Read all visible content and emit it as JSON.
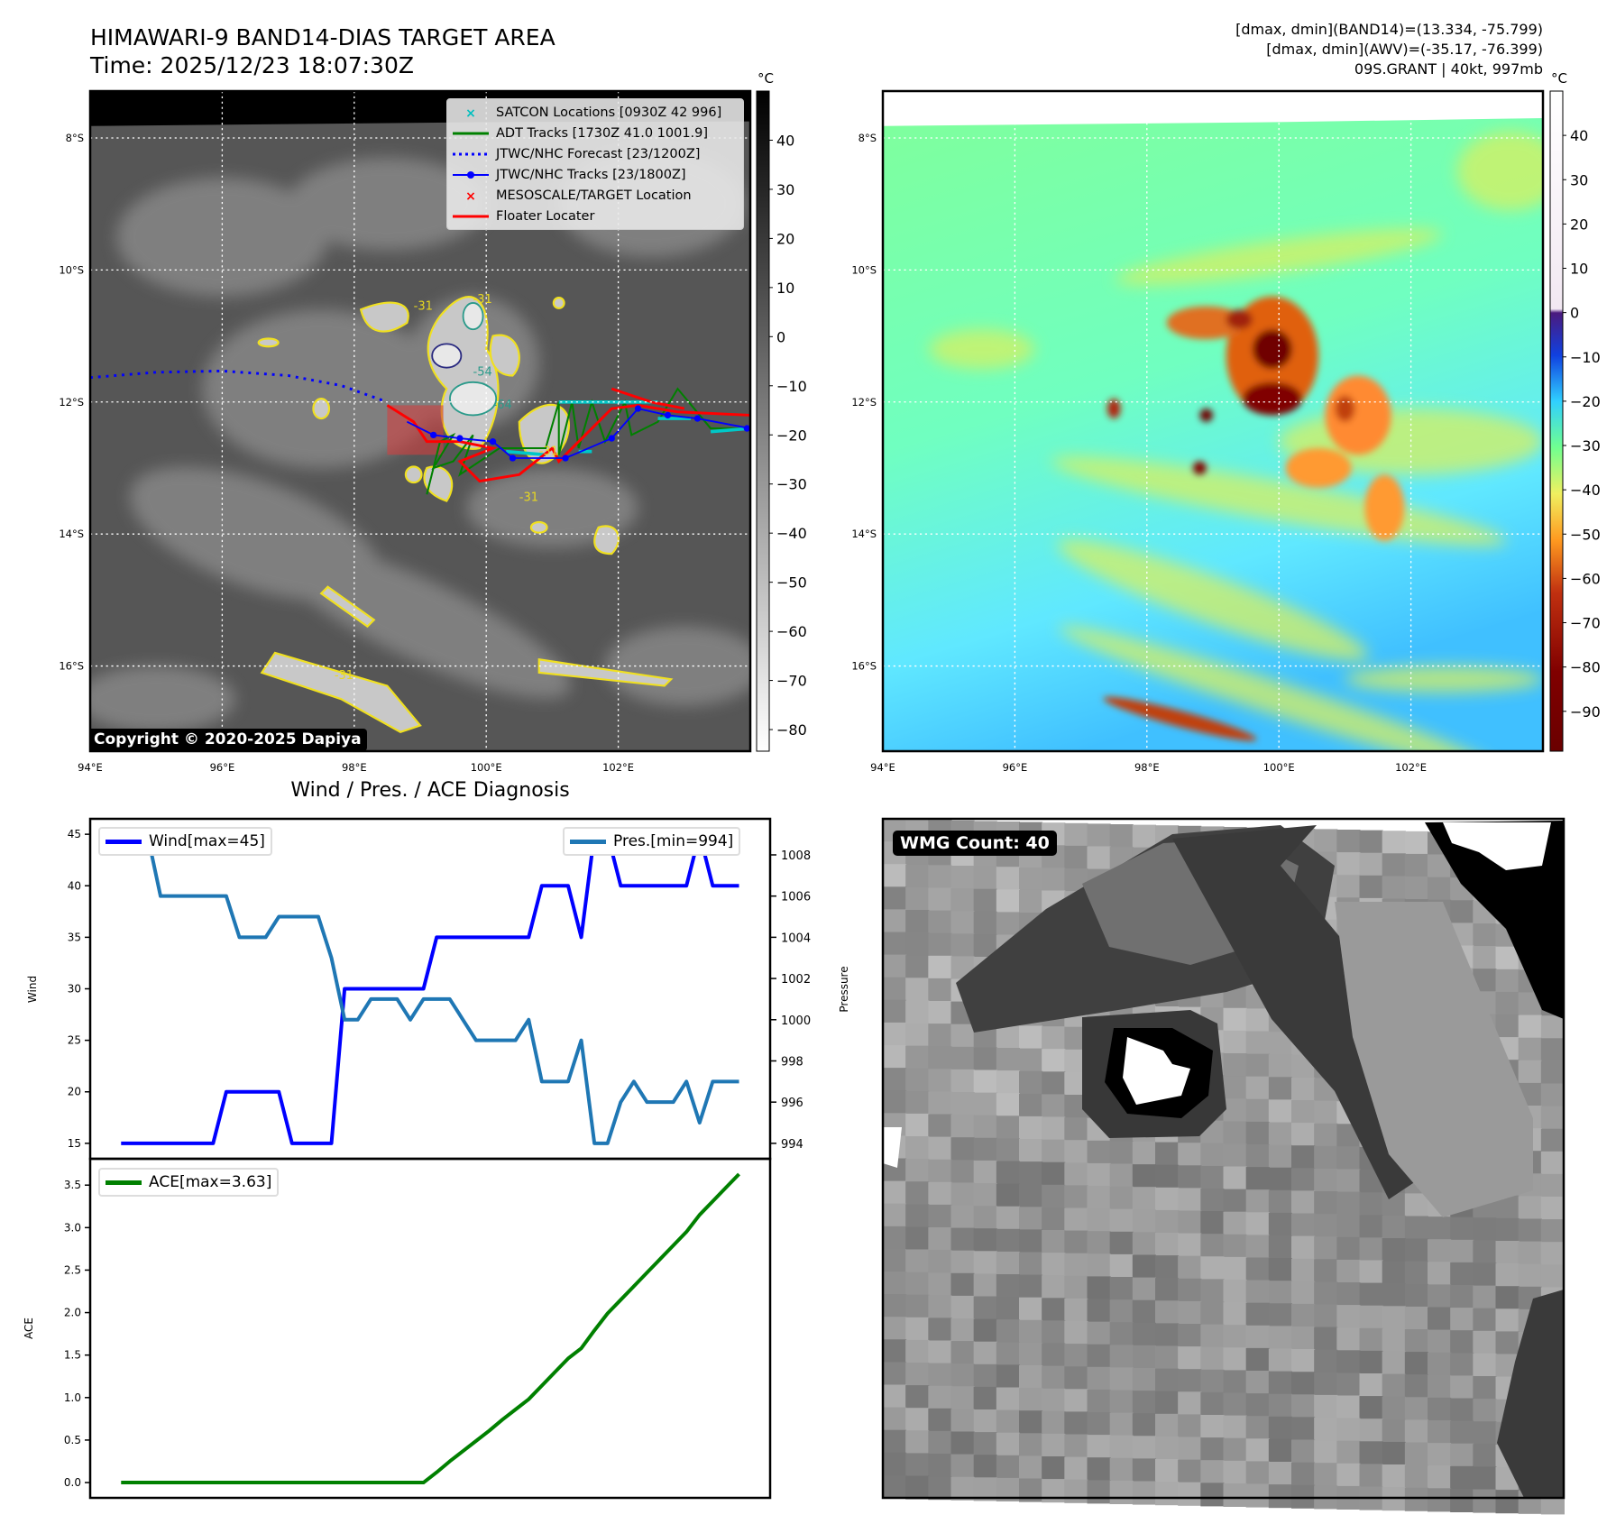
{
  "header": {
    "title": "HIMAWARI-9 BAND14-DIAS TARGET AREA",
    "time": "Time: 2025/12/23 18:07:30Z",
    "stats": [
      "[dmax, dmin](BAND14)=(13.334, -75.799)",
      "[dmax, dmin](AWV)=(-35.17, -76.399)",
      "09S.GRANT | 40kt, 997mb"
    ]
  },
  "legend": [
    {
      "label": "SATCON Locations [0930Z 42 996]",
      "icon": "x-marker-icon",
      "color": "#00bfbf"
    },
    {
      "label": "ADT Tracks [1730Z 41.0 1001.9]",
      "icon": "line-icon",
      "color": "#008000"
    },
    {
      "label": "JTWC/NHC Forecast [23/1200Z]",
      "icon": "dotted-line-icon",
      "color": "#0000ff"
    },
    {
      "label": "JTWC/NHC Tracks [23/1800Z]",
      "icon": "line-dot-icon",
      "color": "#0000ff"
    },
    {
      "label": "MESOSCALE/TARGET Location",
      "icon": "x-marker-icon",
      "color": "#ff0000"
    },
    {
      "label": "Floater Locater",
      "icon": "line-icon",
      "color": "#ff0000"
    }
  ],
  "copyright": "Copyright © 2020-2025 Dapiya",
  "maps": {
    "lat_ticks": [
      "8°S",
      "10°S",
      "12°S",
      "14°S",
      "16°S"
    ],
    "lon_ticks": [
      "94°E",
      "96°E",
      "98°E",
      "100°E",
      "102°E"
    ],
    "colorbar_unit": "°C",
    "left_colorbar_ticks": [
      "40",
      "30",
      "20",
      "10",
      "0",
      "−10",
      "−20",
      "−30",
      "−40",
      "−50",
      "−60",
      "−70",
      "−80"
    ],
    "right_colorbar_ticks": [
      "40",
      "30",
      "20",
      "10",
      "0",
      "−10",
      "−20",
      "−30",
      "−40",
      "−50",
      "−60",
      "−70",
      "−80",
      "−90"
    ],
    "contour_labels": [
      "-31",
      "-31",
      "-54",
      "-64",
      "-31",
      "-31",
      "-31"
    ]
  },
  "wmg_label": "WMG Count: 40",
  "chart_data": [
    {
      "type": "line",
      "title": "Wind / Pres. / ACE Diagnosis",
      "ylabel": "Wind",
      "y2label": "Pressure",
      "ylim": [
        13.5,
        46.5
      ],
      "y2lim": [
        993.25,
        1009.75
      ],
      "yticks": [
        15,
        20,
        25,
        30,
        35,
        40,
        45
      ],
      "y2ticks": [
        994,
        996,
        998,
        1000,
        1002,
        1004,
        1006,
        1008
      ],
      "series": [
        {
          "name": "Wind[max=45]",
          "axis": "left",
          "color": "#0000ff",
          "values": [
            15,
            15,
            15,
            15,
            15,
            15,
            15,
            15,
            20,
            20,
            20,
            20,
            20,
            15,
            15,
            15,
            15,
            30,
            30,
            30,
            30,
            30,
            30,
            30,
            35,
            35,
            35,
            35,
            35,
            35,
            35,
            35,
            40,
            40,
            40,
            35,
            45,
            45,
            40,
            40,
            40,
            40,
            40,
            40,
            45,
            40,
            40,
            40
          ]
        },
        {
          "name": "Pres.[min=994]",
          "axis": "right",
          "color": "#1f77b4",
          "values": [
            1009,
            1009,
            1009,
            1006,
            1006,
            1006,
            1006,
            1006,
            1006,
            1004,
            1004,
            1004,
            1005,
            1005,
            1005,
            1005,
            1003,
            1000,
            1000,
            1001,
            1001,
            1001,
            1000,
            1001,
            1001,
            1001,
            1000,
            999,
            999,
            999,
            999,
            1000,
            997,
            997,
            997,
            999,
            994,
            994,
            996,
            997,
            996,
            996,
            996,
            997,
            995,
            997,
            997,
            997
          ]
        }
      ]
    },
    {
      "type": "line",
      "ylabel": "ACE",
      "ylim": [
        -0.18,
        3.81
      ],
      "yticks": [
        0.0,
        0.5,
        1.0,
        1.5,
        2.0,
        2.5,
        3.0,
        3.5
      ],
      "series": [
        {
          "name": "ACE[max=3.63]",
          "color": "#008000",
          "values": [
            0,
            0,
            0,
            0,
            0,
            0,
            0,
            0,
            0,
            0,
            0,
            0,
            0,
            0,
            0,
            0,
            0,
            0,
            0,
            0,
            0,
            0,
            0,
            0,
            0.12,
            0.25,
            0.37,
            0.49,
            0.61,
            0.74,
            0.86,
            0.98,
            1.14,
            1.3,
            1.46,
            1.58,
            1.79,
            1.99,
            2.15,
            2.31,
            2.47,
            2.63,
            2.79,
            2.95,
            3.15,
            3.31,
            3.47,
            3.63
          ]
        }
      ]
    }
  ]
}
